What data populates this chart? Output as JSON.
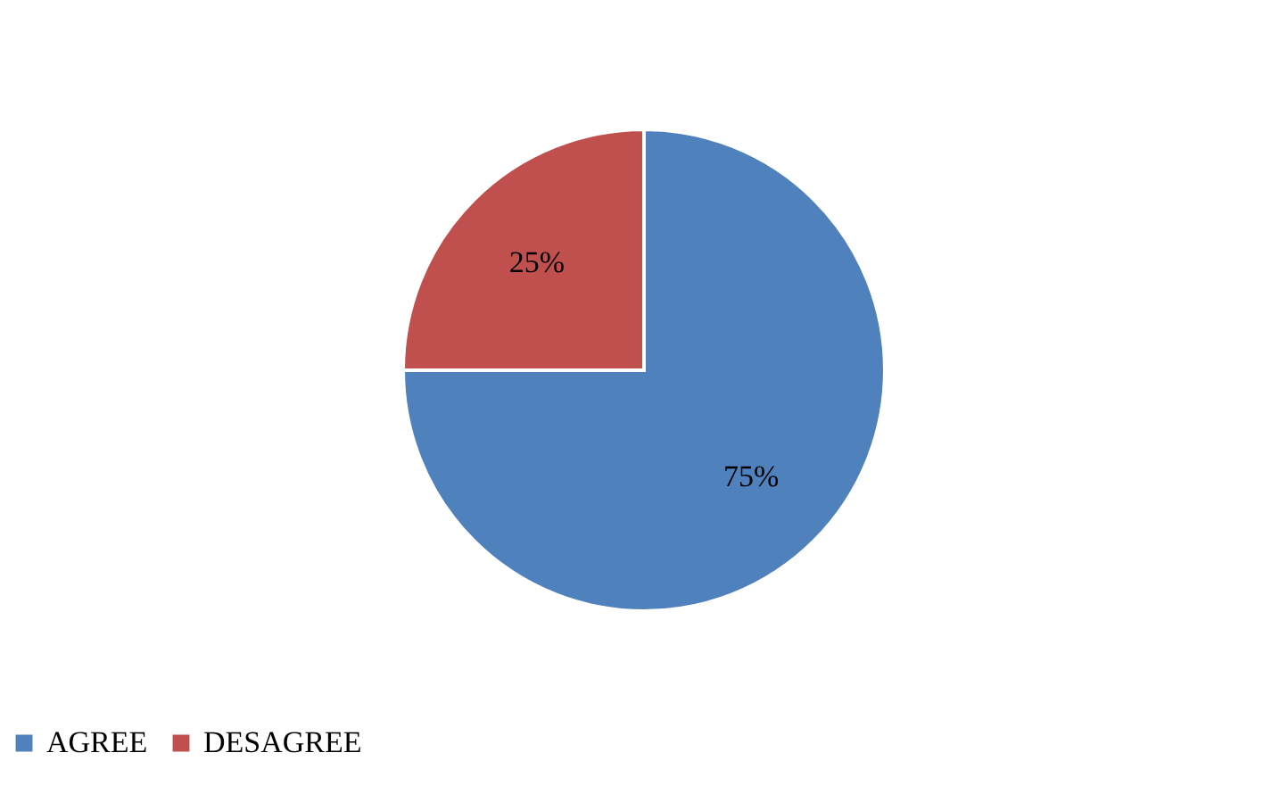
{
  "chart_data": {
    "type": "pie",
    "categories": [
      "AGREE",
      "DESAGREE"
    ],
    "values": [
      75,
      25
    ],
    "colors": [
      "#4f81bd",
      "#c0504d"
    ],
    "value_labels": [
      "75%",
      "25%"
    ],
    "legend": "bottom"
  }
}
